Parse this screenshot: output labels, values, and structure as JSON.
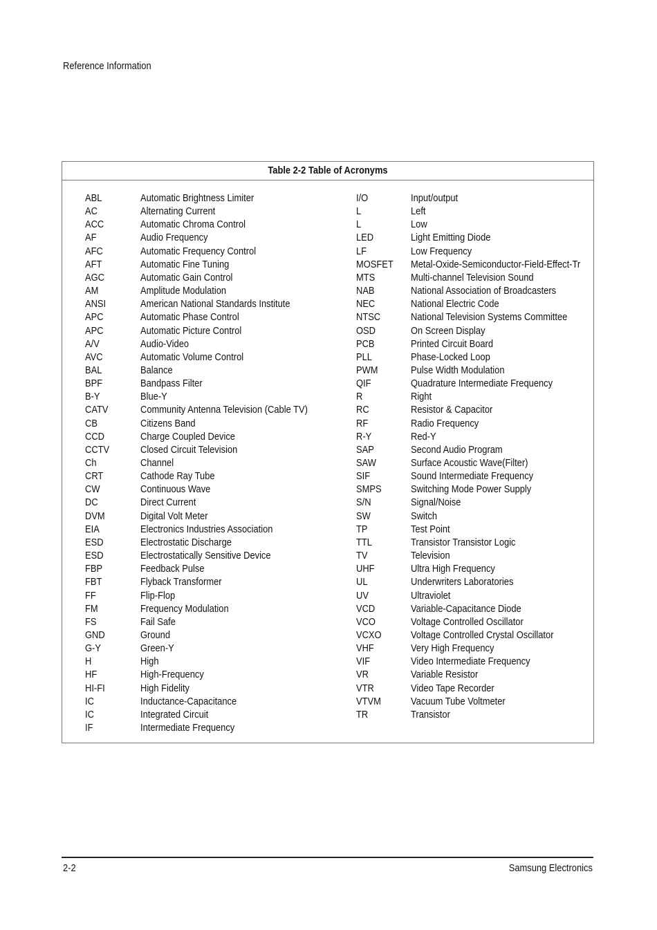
{
  "header": {
    "section": "Reference Information"
  },
  "table": {
    "title": "Table 2-2 Table of Acronyms",
    "left": [
      [
        "ABL",
        "Automatic Brightness Limiter"
      ],
      [
        "AC",
        "Alternating Current"
      ],
      [
        "ACC",
        "Automatic Chroma Control"
      ],
      [
        "AF",
        "Audio Frequency"
      ],
      [
        "AFC",
        "Automatic Frequency Control"
      ],
      [
        "AFT",
        "Automatic Fine Tuning"
      ],
      [
        "AGC",
        "Automatic Gain Control"
      ],
      [
        "AM",
        "Amplitude Modulation"
      ],
      [
        "ANSI",
        "American National Standards Institute"
      ],
      [
        "APC",
        "Automatic Phase Control"
      ],
      [
        "APC",
        "Automatic Picture Control"
      ],
      [
        "A/V",
        "Audio-Video"
      ],
      [
        "AVC",
        "Automatic Volume Control"
      ],
      [
        "BAL",
        "Balance"
      ],
      [
        "BPF",
        "Bandpass Filter"
      ],
      [
        "B-Y",
        "Blue-Y"
      ],
      [
        "CATV",
        "Community Antenna Television (Cable TV)"
      ],
      [
        "CB",
        "Citizens Band"
      ],
      [
        "CCD",
        "Charge Coupled Device"
      ],
      [
        "CCTV",
        "Closed Circuit Television"
      ],
      [
        "Ch",
        "Channel"
      ],
      [
        "CRT",
        "Cathode Ray Tube"
      ],
      [
        "CW",
        "Continuous Wave"
      ],
      [
        "DC",
        "Direct Current"
      ],
      [
        "DVM",
        "Digital Volt Meter"
      ],
      [
        "EIA",
        "Electronics Industries Association"
      ],
      [
        "ESD",
        "Electrostatic Discharge"
      ],
      [
        "ESD",
        "Electrostatically Sensitive Device"
      ],
      [
        "FBP",
        "Feedback Pulse"
      ],
      [
        "FBT",
        "Flyback Transformer"
      ],
      [
        "FF",
        "Flip-Flop"
      ],
      [
        "FM",
        "Frequency Modulation"
      ],
      [
        "FS",
        "Fail Safe"
      ],
      [
        "GND",
        "Ground"
      ],
      [
        "G-Y",
        "Green-Y"
      ],
      [
        "H",
        "High"
      ],
      [
        "HF",
        "High-Frequency"
      ],
      [
        "HI-FI",
        "High Fidelity"
      ],
      [
        "IC",
        "Inductance-Capacitance"
      ],
      [
        "IC",
        "Integrated Circuit"
      ],
      [
        "IF",
        "Intermediate Frequency"
      ]
    ],
    "right": [
      [
        "I/O",
        "Input/output"
      ],
      [
        "L",
        "Left"
      ],
      [
        "L",
        "Low"
      ],
      [
        "LED",
        "Light Emitting Diode"
      ],
      [
        "LF",
        "Low Frequency"
      ],
      [
        "MOSFET",
        "Metal-Oxide-Semiconductor-Field-Effect-Tr"
      ],
      [
        "MTS",
        "Multi-channel Television Sound"
      ],
      [
        "NAB",
        "National Association of Broadcasters"
      ],
      [
        "NEC",
        "National Electric Code"
      ],
      [
        "NTSC",
        "National Television Systems Committee"
      ],
      [
        "OSD",
        "On Screen Display"
      ],
      [
        "PCB",
        "Printed Circuit Board"
      ],
      [
        "PLL",
        "Phase-Locked Loop"
      ],
      [
        "PWM",
        "Pulse Width Modulation"
      ],
      [
        "QIF",
        "Quadrature Intermediate Frequency"
      ],
      [
        "R",
        "Right"
      ],
      [
        "RC",
        "Resistor & Capacitor"
      ],
      [
        "RF",
        "Radio Frequency"
      ],
      [
        "R-Y",
        "Red-Y"
      ],
      [
        "SAP",
        "Second Audio Program"
      ],
      [
        "SAW",
        "Surface Acoustic Wave(Filter)"
      ],
      [
        "SIF",
        "Sound Intermediate Frequency"
      ],
      [
        "SMPS",
        "Switching Mode Power Supply"
      ],
      [
        "S/N",
        "Signal/Noise"
      ],
      [
        "SW",
        "Switch"
      ],
      [
        "TP",
        "Test Point"
      ],
      [
        "TTL",
        "Transistor Transistor Logic"
      ],
      [
        "TV",
        "Television"
      ],
      [
        "UHF",
        "Ultra High Frequency"
      ],
      [
        "UL",
        "Underwriters Laboratories"
      ],
      [
        "UV",
        "Ultraviolet"
      ],
      [
        "VCD",
        "Variable-Capacitance Diode"
      ],
      [
        "VCO",
        "Voltage Controlled Oscillator"
      ],
      [
        "VCXO",
        "Voltage Controlled Crystal Oscillator"
      ],
      [
        "VHF",
        "Very High Frequency"
      ],
      [
        "VIF",
        "Video Intermediate Frequency"
      ],
      [
        "VR",
        "Variable Resistor"
      ],
      [
        "VTR",
        "Video Tape Recorder"
      ],
      [
        "VTVM",
        "Vacuum Tube Voltmeter"
      ],
      [
        "TR",
        "Transistor"
      ]
    ]
  },
  "footer": {
    "page": "2-2",
    "company": "Samsung Electronics"
  }
}
